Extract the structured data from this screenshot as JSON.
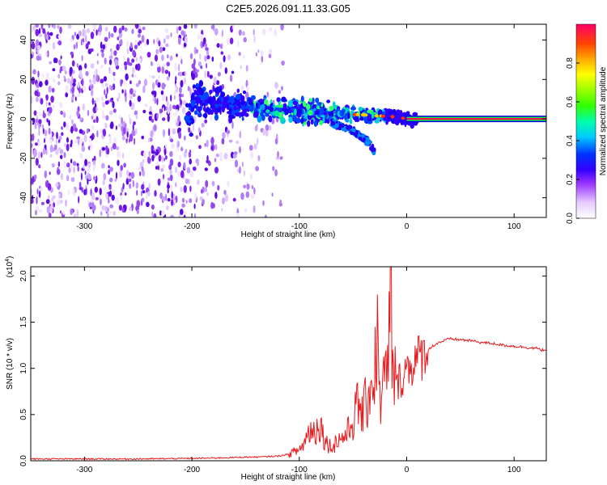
{
  "title": "C2E5.2026.091.11.33.G05",
  "chart_data": [
    {
      "type": "heatmap",
      "name": "spectrogram",
      "xlabel": "Height of straight line (km)",
      "ylabel": "Frequency (Hz)",
      "xlim": [
        -350,
        130
      ],
      "ylim": [
        -50,
        48
      ],
      "xticks": [
        -300,
        -200,
        -100,
        0,
        100
      ],
      "yticks": [
        -40,
        -20,
        0,
        20,
        40
      ],
      "colorbar": {
        "label": "Normalized spectral amplitude",
        "range": [
          0,
          1
        ],
        "ticks": [
          "0.0",
          "0.2",
          "0.4",
          "0.6",
          "0.8"
        ],
        "tick_values": [
          0.0,
          0.2,
          0.4,
          0.6,
          0.8
        ]
      },
      "features": {
        "noise_region_x": [
          -350,
          -125
        ],
        "main_trace": [
          [
            -200,
            10
          ],
          [
            -160,
            7
          ],
          [
            -120,
            5
          ],
          [
            -80,
            3
          ],
          [
            -40,
            2
          ],
          [
            -10,
            1
          ],
          [
            0,
            0
          ],
          [
            130,
            0
          ]
        ],
        "branch_trace": [
          [
            -70,
            -2
          ],
          [
            -50,
            -6
          ],
          [
            -35,
            -12
          ],
          [
            -30,
            -17
          ]
        ],
        "constant_line_x": [
          0,
          130
        ]
      }
    },
    {
      "type": "line",
      "name": "snr",
      "xlabel": "Height of straight line (km)",
      "ylabel": "SNR (10 * v/v)",
      "exponent_label": "(x10",
      "exponent_power": "4",
      "exponent_close": ")",
      "xlim": [
        -350,
        130
      ],
      "ylim": [
        0,
        2.1
      ],
      "xticks": [
        -300,
        -200,
        -100,
        0,
        100
      ],
      "yticks": [
        0.0,
        0.5,
        1.0,
        1.5,
        2.0
      ],
      "ytick_labels": [
        "0.0",
        "0.5",
        "1.0",
        "1.5",
        "2.0"
      ],
      "color": "#e8191c",
      "series": [
        {
          "name": "SNR",
          "x": [
            -350,
            -300,
            -250,
            -200,
            -180,
            -160,
            -150,
            -140,
            -120,
            -110,
            -100,
            -95,
            -90,
            -85,
            -82,
            -78,
            -75,
            -70,
            -65,
            -60,
            -55,
            -50,
            -45,
            -40,
            -35,
            -30,
            -28,
            -25,
            -22,
            -20,
            -17,
            -15,
            -13,
            -10,
            -5,
            0,
            5,
            10,
            15,
            20,
            25,
            30,
            35,
            40,
            50,
            60,
            70,
            80,
            90,
            100,
            110,
            115,
            120,
            125,
            130
          ],
          "y": [
            0.02,
            0.02,
            0.02,
            0.025,
            0.03,
            0.035,
            0.04,
            0.04,
            0.05,
            0.07,
            0.12,
            0.2,
            0.35,
            0.3,
            0.45,
            0.3,
            0.2,
            0.15,
            0.22,
            0.25,
            0.3,
            0.45,
            0.6,
            0.5,
            0.8,
            0.9,
            1.4,
            0.7,
            0.8,
            0.85,
            1.0,
            1.95,
            1.0,
            0.8,
            0.9,
            1.0,
            1.05,
            1.1,
            1.15,
            1.2,
            1.25,
            1.28,
            1.3,
            1.32,
            1.31,
            1.3,
            1.28,
            1.27,
            1.25,
            1.24,
            1.23,
            1.22,
            1.22,
            1.2,
            1.2
          ]
        }
      ]
    }
  ]
}
